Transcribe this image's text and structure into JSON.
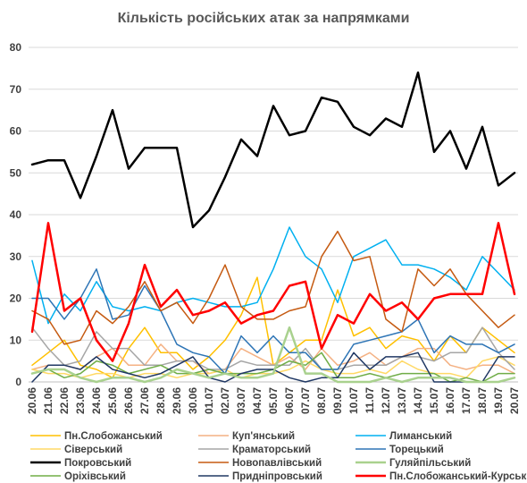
{
  "chart_data": {
    "type": "line",
    "title": "Кількість російських атак за напрямками",
    "xlabel": "",
    "ylabel": "",
    "ylim": [
      0,
      80
    ],
    "yticks": [
      0,
      10,
      20,
      30,
      40,
      50,
      60,
      70,
      80
    ],
    "grid": "horizontal",
    "legend_position": "bottom",
    "categories": [
      "20.06",
      "21.06",
      "22.06",
      "23.06",
      "24.06",
      "25.06",
      "26.06",
      "27.06",
      "28.06",
      "29.06",
      "30.06",
      "01.07",
      "02.07",
      "03.07",
      "04.07",
      "05.07",
      "06.07",
      "07.07",
      "08.07",
      "09.07",
      "10.07",
      "11.07",
      "12.07",
      "13.07",
      "14.07",
      "15.07",
      "16.07",
      "17.07",
      "18.07",
      "19.07",
      "20.07"
    ],
    "series": [
      {
        "name": "Пн.Слобожанський",
        "color": "#FFC000",
        "width": 1.5,
        "values": [
          4,
          7,
          10,
          4,
          3,
          1,
          8,
          13,
          7,
          7,
          3,
          6,
          10,
          16,
          25,
          4,
          7,
          10,
          10,
          22,
          11,
          13,
          8,
          11,
          10,
          5,
          11,
          7,
          13,
          10,
          7
        ]
      },
      {
        "name": "Куп'янський",
        "color": "#F4B183",
        "width": 1.5,
        "values": [
          3,
          4,
          4,
          3,
          6,
          8,
          4,
          4,
          9,
          5,
          5,
          2,
          3,
          8,
          6,
          4,
          6,
          3,
          8,
          4,
          5,
          7,
          4,
          6,
          8,
          8,
          4,
          3,
          4,
          4,
          2
        ]
      },
      {
        "name": "Лиманський",
        "color": "#00B0F0",
        "width": 1.5,
        "values": [
          29,
          14,
          21,
          17,
          24,
          18,
          17,
          18,
          17,
          19,
          20,
          19,
          18,
          18,
          19,
          27,
          37,
          30,
          27,
          19,
          30,
          32,
          34,
          28,
          28,
          27,
          25,
          22,
          30,
          26,
          22
        ]
      },
      {
        "name": "Сіверський",
        "color": "#FFD966",
        "width": 1.5,
        "values": [
          3,
          2,
          2,
          1,
          2,
          2,
          1,
          2,
          2,
          1,
          2,
          2,
          3,
          1,
          2,
          2,
          3,
          5,
          3,
          2,
          2,
          3,
          2,
          5,
          3,
          2,
          2,
          1,
          5,
          6,
          4
        ]
      },
      {
        "name": "Краматорський",
        "color": "#A6A6A6",
        "width": 1.5,
        "values": [
          13,
          8,
          4,
          5,
          12,
          8,
          8,
          4,
          4,
          5,
          5,
          3,
          3,
          5,
          4,
          4,
          4,
          8,
          3,
          3,
          4,
          4,
          4,
          6,
          6,
          5,
          7,
          7,
          13,
          7,
          3
        ]
      },
      {
        "name": "Торецький",
        "color": "#2E75B6",
        "width": 1.5,
        "values": [
          20,
          20,
          15,
          20,
          27,
          15,
          16,
          23,
          17,
          9,
          7,
          6,
          2,
          11,
          7,
          11,
          7,
          7,
          3,
          3,
          9,
          10,
          11,
          12,
          15,
          7,
          11,
          9,
          9,
          7,
          9
        ]
      },
      {
        "name": "Покровський",
        "color": "#000000",
        "width": 2.5,
        "values": [
          52,
          53,
          53,
          44,
          54,
          65,
          51,
          56,
          56,
          56,
          37,
          41,
          49,
          58,
          54,
          66,
          59,
          60,
          68,
          67,
          61,
          59,
          63,
          61,
          74,
          55,
          60,
          51,
          61,
          47,
          50
        ]
      },
      {
        "name": "Новопавлівський",
        "color": "#C55A11",
        "width": 1.5,
        "values": [
          17,
          15,
          9,
          10,
          17,
          14,
          18,
          24,
          17,
          19,
          14,
          20,
          28,
          18,
          15,
          15,
          17,
          18,
          30,
          36,
          29,
          30,
          15,
          12,
          27,
          23,
          27,
          21,
          17,
          13,
          16
        ]
      },
      {
        "name": "Гуляйпільський",
        "color": "#A9D18E",
        "width": 2.5,
        "values": [
          2,
          3,
          3,
          1,
          0,
          1,
          1,
          0,
          1,
          3,
          2,
          1,
          2,
          1,
          1,
          2,
          13,
          2,
          2,
          0,
          0,
          0,
          1,
          0,
          1,
          1,
          1,
          0,
          0,
          0,
          1
        ]
      },
      {
        "name": "Оріхівський",
        "color": "#70AD47",
        "width": 1.5,
        "values": [
          2,
          3,
          1,
          2,
          5,
          4,
          2,
          3,
          4,
          2,
          2,
          3,
          2,
          2,
          2,
          3,
          5,
          4,
          7,
          1,
          1,
          2,
          1,
          2,
          2,
          2,
          0,
          1,
          0,
          2,
          2
        ]
      },
      {
        "name": "Придніпровський",
        "color": "#203864",
        "width": 1.5,
        "values": [
          0,
          4,
          4,
          3,
          6,
          3,
          2,
          1,
          2,
          4,
          6,
          1,
          0,
          2,
          3,
          3,
          1,
          0,
          1,
          1,
          7,
          3,
          6,
          6,
          7,
          0,
          0,
          0,
          0,
          6,
          6
        ]
      },
      {
        "name": "Пн.Слобожанський-Курський",
        "color": "#FF0000",
        "width": 2.5,
        "values": [
          12,
          38,
          17,
          20,
          10,
          5,
          14,
          28,
          18,
          22,
          16,
          17,
          19,
          14,
          16,
          17,
          23,
          24,
          8,
          16,
          14,
          21,
          17,
          19,
          15,
          20,
          21,
          21,
          21,
          38,
          21
        ]
      }
    ]
  }
}
